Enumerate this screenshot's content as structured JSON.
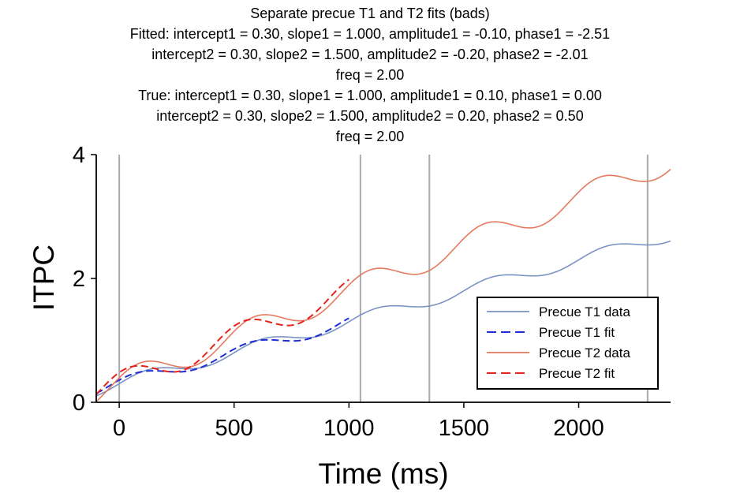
{
  "chart_data": {
    "type": "line",
    "title": "Separate precue T1 and T2 fits (bads)",
    "subtitle_lines": [
      "Fitted: intercept1 = 0.30, slope1 = 1.000, amplitude1 = -0.10, phase1 = -2.51",
      "intercept2 = 0.30, slope2 = 1.500, amplitude2 = -0.20, phase2 = -2.01",
      "freq = 2.00",
      "True: intercept1 = 0.30, slope1 = 1.000, amplitude1 = 0.10, phase1 = 0.00",
      "intercept2 = 0.30, slope2 = 1.500, amplitude2 = 0.20, phase2 = 0.50",
      "freq = 2.00"
    ],
    "xlabel": "Time (ms)",
    "ylabel": "ITPC",
    "xlim": [
      -100,
      2400
    ],
    "ylim": [
      0,
      4
    ],
    "xticks": [
      0,
      500,
      1000,
      1500,
      2000
    ],
    "yticks": [
      0,
      2,
      4
    ],
    "vlines": [
      0,
      1050,
      1350,
      2300
    ],
    "legend_position": "lower-right",
    "series": [
      {
        "name": "Precue T1 data",
        "style": "solid",
        "color": "#7b93c4",
        "x_range": [
          -100,
          2400
        ],
        "params": {
          "intercept": 0.3,
          "slope": 1.0,
          "amplitude": 0.1,
          "phase": 0.0,
          "freq": 2.0
        }
      },
      {
        "name": "Precue T1 fit",
        "style": "dashed",
        "color": "#1f2fd6",
        "x_range": [
          -100,
          1000
        ],
        "params": {
          "intercept": 0.3,
          "slope": 1.0,
          "amplitude": -0.1,
          "phase": -2.51,
          "freq": 2.0
        }
      },
      {
        "name": "Precue T2 data",
        "style": "solid",
        "color": "#e57a5f",
        "x_range": [
          -100,
          2400
        ],
        "params": {
          "intercept": 0.3,
          "slope": 1.5,
          "amplitude": 0.2,
          "phase": 0.5,
          "freq": 2.0
        }
      },
      {
        "name": "Precue T2 fit",
        "style": "dashed",
        "color": "#e5231b",
        "x_range": [
          -100,
          1000
        ],
        "params": {
          "intercept": 0.3,
          "slope": 1.5,
          "amplitude": -0.2,
          "phase": -2.01,
          "freq": 2.0
        }
      }
    ]
  }
}
